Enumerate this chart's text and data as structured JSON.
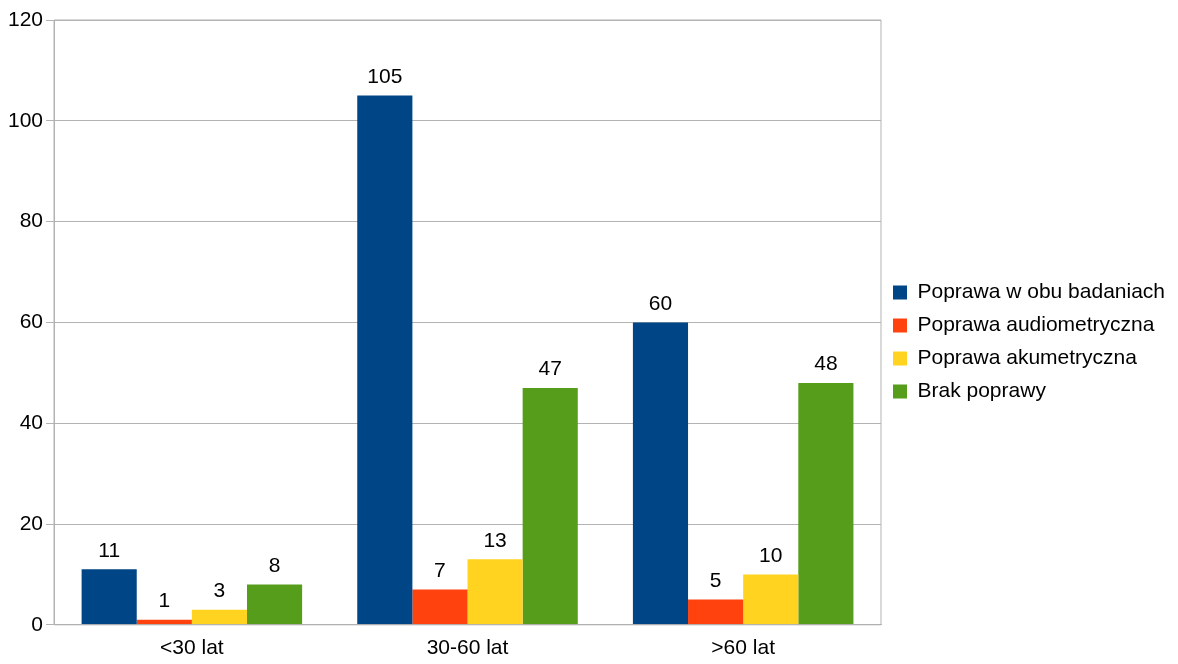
{
  "chart_data": {
    "type": "bar",
    "categories": [
      "<30 lat",
      "30-60 lat",
      ">60 lat"
    ],
    "series": [
      {
        "name": "Poprawa w obu badaniach",
        "color": "#004586",
        "values": [
          11,
          105,
          60
        ]
      },
      {
        "name": "Poprawa audiometryczna",
        "color": "#ff420e",
        "values": [
          1,
          7,
          5
        ]
      },
      {
        "name": "Poprawa akumetryczna",
        "color": "#ffd320",
        "values": [
          3,
          13,
          10
        ]
      },
      {
        "name": "Brak poprawy",
        "color": "#579d1c",
        "values": [
          8,
          47,
          48
        ]
      }
    ],
    "ylim": [
      0,
      120
    ],
    "yticks": [
      0,
      20,
      40,
      60,
      80,
      100,
      120
    ],
    "grid": "y",
    "legend": "right",
    "data_labels": true
  }
}
